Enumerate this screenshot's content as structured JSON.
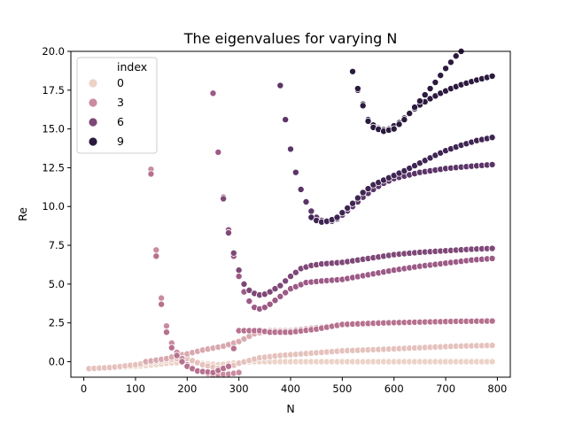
{
  "chart_data": {
    "type": "scatter",
    "title": "The eigenvalues for varying N",
    "xlabel": "N",
    "ylabel": "Re",
    "xlim": [
      -25,
      825
    ],
    "ylim": [
      -1.0,
      20.0
    ],
    "xticks": [
      0,
      100,
      200,
      300,
      400,
      500,
      600,
      700,
      800
    ],
    "yticks": [
      0.0,
      2.5,
      5.0,
      7.5,
      10.0,
      12.5,
      15.0,
      17.5,
      20.0
    ],
    "xtick_labels": [
      "0",
      "100",
      "200",
      "300",
      "400",
      "500",
      "600",
      "700",
      "800"
    ],
    "ytick_labels": [
      "0.0",
      "2.5",
      "5.0",
      "7.5",
      "10.0",
      "12.5",
      "15.0",
      "17.5",
      "20.0"
    ],
    "grid": false,
    "legend": {
      "title": "index",
      "placement": "upper-left",
      "entries": [
        {
          "label": "0",
          "color": "#ecd2c7"
        },
        {
          "label": "3",
          "color": "#c98c9f"
        },
        {
          "label": "6",
          "color": "#7e4878"
        },
        {
          "label": "9",
          "color": "#2b1a3e"
        }
      ]
    },
    "index_colors": [
      "#ecd2c7",
      "#e5c2bd",
      "#d8a9af",
      "#c98c9f",
      "#b6718f",
      "#9c5a86",
      "#7e4878",
      "#5c3568",
      "#3e2552",
      "#2b1a3e"
    ],
    "N_start": 10,
    "N_end": 790,
    "N_step": 10,
    "series": [
      {
        "index": 0,
        "x": [
          10,
          60,
          120,
          170,
          210,
          260,
          300,
          330,
          380,
          430,
          480,
          520,
          580,
          640,
          700,
          760,
          790
        ],
        "y": [
          -0.45,
          -0.4,
          -0.25,
          -0.08,
          -0.05,
          -0.2,
          -0.05,
          0.0,
          0.0,
          0.0,
          0.0,
          0.0,
          0.0,
          0.0,
          0.0,
          0.0,
          0.0
        ]
      },
      {
        "index": 1,
        "x": [
          10,
          50,
          100,
          150,
          180,
          200,
          230,
          270,
          300,
          340,
          380,
          440,
          500,
          580,
          650,
          720,
          790
        ],
        "y": [
          -0.45,
          -0.38,
          -0.2,
          0.05,
          0.2,
          0.2,
          -0.2,
          -0.5,
          -0.1,
          0.25,
          0.4,
          0.55,
          0.7,
          0.8,
          0.9,
          1.0,
          1.05
        ]
      },
      {
        "index": 2,
        "x": [
          120,
          140,
          160,
          180,
          200,
          230,
          270,
          300,
          330,
          360,
          400,
          450,
          500,
          580,
          650,
          720,
          790
        ],
        "y": [
          0.0,
          0.1,
          0.2,
          0.4,
          0.5,
          0.75,
          1.0,
          1.3,
          1.8,
          2.0,
          2.0,
          2.2,
          2.35,
          2.45,
          2.55,
          2.6,
          2.62
        ]
      },
      {
        "index": 3,
        "x": [
          130,
          140,
          150,
          160,
          170,
          180,
          190,
          200,
          220,
          250,
          280,
          300
        ],
        "y": [
          12.4,
          7.2,
          4.1,
          2.3,
          1.2,
          0.6,
          0.2,
          -0.2,
          -0.6,
          -0.85,
          -0.8,
          -0.7
        ]
      },
      {
        "index": 4,
        "x": [
          130,
          140,
          150,
          160,
          170,
          180,
          190,
          200,
          220,
          250,
          280,
          300,
          320,
          340,
          360,
          400,
          450,
          500,
          580,
          650,
          720,
          790
        ],
        "y": [
          12.1,
          6.8,
          3.7,
          1.9,
          0.9,
          0.4,
          0.0,
          -0.3,
          -0.6,
          -0.7,
          -0.3,
          2.0,
          2.0,
          2.0,
          1.9,
          1.9,
          2.1,
          2.4,
          2.5,
          2.55,
          2.6,
          2.62
        ]
      },
      {
        "index": 5,
        "x": [
          250,
          260,
          270,
          280,
          290,
          300,
          310,
          320,
          330,
          340,
          350,
          360,
          380,
          400,
          430,
          460,
          500,
          550,
          600,
          650,
          700,
          750,
          790
        ],
        "y": [
          17.3,
          13.5,
          10.6,
          8.5,
          6.8,
          5.5,
          4.5,
          3.9,
          3.5,
          3.4,
          3.5,
          3.7,
          4.2,
          4.7,
          5.1,
          5.2,
          5.3,
          5.6,
          5.9,
          6.15,
          6.35,
          6.55,
          6.65
        ]
      },
      {
        "index": 6,
        "x": [
          270,
          280,
          290,
          300,
          310,
          320,
          330,
          340,
          350,
          360,
          380,
          400,
          420,
          440,
          460,
          500,
          550,
          600,
          650,
          700,
          750,
          790
        ],
        "y": [
          10.5,
          8.3,
          7.0,
          5.9,
          5.0,
          4.6,
          4.4,
          4.3,
          4.35,
          4.5,
          4.9,
          5.5,
          6.0,
          6.2,
          6.3,
          6.4,
          6.65,
          6.9,
          7.05,
          7.15,
          7.25,
          7.3
        ]
      },
      {
        "index": 7,
        "x": [
          380,
          390,
          400,
          410,
          420,
          430,
          440,
          450,
          460,
          470,
          480,
          490,
          500,
          520,
          540,
          560,
          580,
          600,
          650,
          700,
          750,
          790
        ],
        "y": [
          17.8,
          15.6,
          13.7,
          12.2,
          11.1,
          10.3,
          9.7,
          9.3,
          9.1,
          9.0,
          9.05,
          9.2,
          9.45,
          10.0,
          10.6,
          11.1,
          11.5,
          11.8,
          12.2,
          12.45,
          12.6,
          12.7
        ]
      },
      {
        "index": 8,
        "x": [
          440,
          450,
          460,
          470,
          480,
          490,
          500,
          520,
          540,
          560,
          580,
          600,
          620,
          650,
          680,
          700,
          730,
          760,
          790
        ],
        "y": [
          9.3,
          9.1,
          9.0,
          9.05,
          9.15,
          9.3,
          9.6,
          10.2,
          10.9,
          11.4,
          11.7,
          12.0,
          12.3,
          12.8,
          13.3,
          13.6,
          13.95,
          14.25,
          14.45
        ]
      },
      {
        "index": 9,
        "x": [
          520,
          530,
          540,
          550,
          560,
          570,
          580,
          590,
          600,
          610,
          620,
          630,
          640,
          650,
          670,
          690,
          710,
          730,
          760,
          790
        ],
        "y": [
          18.7,
          17.5,
          16.6,
          15.6,
          15.25,
          15.05,
          14.95,
          15.0,
          15.2,
          15.4,
          15.7,
          16.0,
          16.3,
          16.55,
          16.95,
          17.3,
          17.6,
          17.85,
          18.15,
          18.4
        ]
      },
      {
        "index": 9,
        "x": [
          520,
          530,
          540,
          550,
          560,
          580,
          600,
          620,
          640,
          660,
          680,
          700,
          720,
          730
        ],
        "y": [
          18.7,
          17.6,
          16.5,
          15.5,
          15.1,
          14.85,
          15.0,
          15.6,
          16.4,
          17.2,
          18.0,
          18.9,
          19.7,
          20.0
        ]
      }
    ]
  }
}
